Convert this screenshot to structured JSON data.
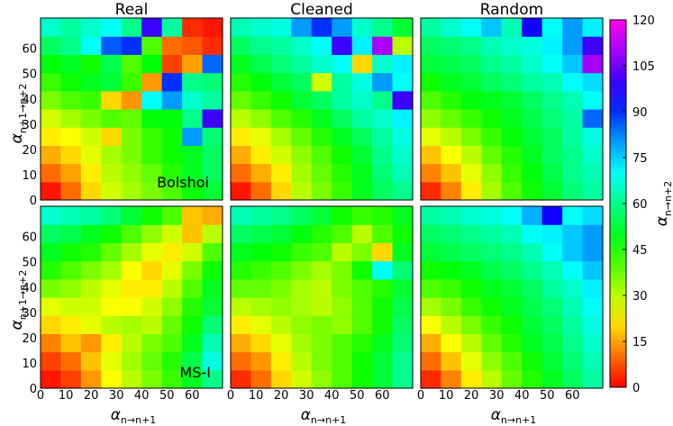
{
  "chart_data": {
    "type": "heatmap",
    "column_titles": [
      "Real",
      "Cleaned",
      "Random"
    ],
    "row_annotations": [
      "Bolshoi",
      "MS-I"
    ],
    "xlabel": {
      "main": "α",
      "sub": "n→n+1"
    },
    "ylabel": {
      "main": "α",
      "sub": "n+1→n+2"
    },
    "colorbar_label": {
      "main": "α",
      "sub": "n→n+2"
    },
    "xticks": [
      "0",
      "10",
      "20",
      "30",
      "40",
      "50",
      "60"
    ],
    "yticks": [
      "0",
      "10",
      "20",
      "30",
      "40",
      "50",
      "60"
    ],
    "colorbar_ticks": [
      "0",
      "15",
      "30",
      "45",
      "60",
      "75",
      "90",
      "105",
      "120"
    ],
    "x_range": [
      0,
      72
    ],
    "y_range": [
      0,
      72
    ],
    "value_range": [
      0,
      120
    ],
    "colormap": "gist_rainbow_r",
    "bin_size": 8,
    "panels": [
      {
        "name": "bolshoi-real",
        "grid": [
          [
            2,
            10,
            20,
            28,
            32,
            36,
            40,
            46,
            52
          ],
          [
            10,
            15,
            22,
            30,
            34,
            38,
            44,
            50,
            56
          ],
          [
            16,
            20,
            26,
            32,
            36,
            42,
            46,
            50,
            56
          ],
          [
            22,
            24,
            28,
            20,
            36,
            42,
            46,
            80,
            58
          ],
          [
            28,
            32,
            36,
            40,
            38,
            48,
            48,
            60,
            100
          ],
          [
            36,
            40,
            42,
            20,
            14,
            70,
            80,
            66,
            62
          ],
          [
            42,
            46,
            50,
            52,
            42,
            14,
            90,
            60,
            58
          ],
          [
            48,
            50,
            46,
            54,
            40,
            48,
            6,
            15,
            85
          ],
          [
            56,
            60,
            70,
            86,
            90,
            40,
            10,
            8,
            4
          ],
          [
            66,
            62,
            66,
            70,
            60,
            100,
            62,
            4,
            2
          ]
        ]
      },
      {
        "name": "bolshoi-cleaned",
        "grid": [
          [
            2,
            10,
            20,
            30,
            36,
            42,
            50,
            56,
            60
          ],
          [
            10,
            16,
            22,
            32,
            38,
            44,
            50,
            58,
            64
          ],
          [
            16,
            22,
            28,
            34,
            40,
            46,
            52,
            60,
            66
          ],
          [
            22,
            26,
            32,
            38,
            44,
            50,
            56,
            62,
            68
          ],
          [
            30,
            34,
            40,
            44,
            50,
            56,
            62,
            66,
            72
          ],
          [
            38,
            42,
            46,
            52,
            56,
            62,
            66,
            60,
            100
          ],
          [
            44,
            48,
            52,
            56,
            28,
            62,
            68,
            80,
            70
          ],
          [
            50,
            54,
            58,
            62,
            66,
            70,
            20,
            66,
            72
          ],
          [
            56,
            60,
            62,
            66,
            70,
            100,
            72,
            110,
            30
          ],
          [
            64,
            66,
            68,
            80,
            90,
            80,
            66,
            60,
            52
          ]
        ]
      },
      {
        "name": "bolshoi-random",
        "grid": [
          [
            4,
            12,
            22,
            32,
            40,
            46,
            52,
            58,
            62
          ],
          [
            12,
            18,
            26,
            34,
            42,
            48,
            54,
            60,
            64
          ],
          [
            18,
            24,
            30,
            38,
            44,
            50,
            56,
            60,
            66
          ],
          [
            26,
            30,
            36,
            42,
            48,
            52,
            56,
            62,
            68
          ],
          [
            34,
            38,
            42,
            46,
            50,
            54,
            58,
            62,
            85
          ],
          [
            40,
            44,
            48,
            50,
            52,
            56,
            60,
            64,
            70
          ],
          [
            46,
            50,
            52,
            56,
            58,
            62,
            64,
            70,
            74
          ],
          [
            52,
            54,
            56,
            60,
            62,
            66,
            70,
            76,
            110
          ],
          [
            56,
            58,
            60,
            64,
            66,
            68,
            72,
            80,
            100
          ],
          [
            62,
            66,
            70,
            76,
            64,
            96,
            70,
            80,
            72
          ]
        ]
      },
      {
        "name": "mst-real",
        "grid": [
          [
            2,
            6,
            14,
            24,
            30,
            36,
            42,
            50,
            60
          ],
          [
            6,
            10,
            18,
            26,
            32,
            38,
            44,
            54,
            68
          ],
          [
            12,
            18,
            14,
            22,
            30,
            36,
            40,
            50,
            64
          ],
          [
            20,
            22,
            26,
            30,
            32,
            30,
            38,
            46,
            58
          ],
          [
            26,
            28,
            28,
            24,
            24,
            28,
            34,
            44,
            52
          ],
          [
            36,
            34,
            30,
            26,
            22,
            22,
            30,
            40,
            50
          ],
          [
            44,
            40,
            36,
            32,
            24,
            20,
            26,
            36,
            46
          ],
          [
            50,
            46,
            44,
            38,
            32,
            26,
            22,
            28,
            40
          ],
          [
            56,
            54,
            50,
            46,
            40,
            34,
            28,
            18,
            30
          ],
          [
            66,
            64,
            62,
            58,
            52,
            46,
            40,
            18,
            16
          ]
        ]
      },
      {
        "name": "mst-cleaned",
        "grid": [
          [
            4,
            10,
            20,
            28,
            34,
            40,
            46,
            52,
            60
          ],
          [
            10,
            14,
            22,
            30,
            36,
            40,
            46,
            52,
            60
          ],
          [
            16,
            20,
            26,
            32,
            36,
            40,
            44,
            50,
            58
          ],
          [
            22,
            26,
            30,
            34,
            36,
            34,
            40,
            46,
            56
          ],
          [
            30,
            32,
            34,
            32,
            30,
            34,
            40,
            46,
            54
          ],
          [
            38,
            38,
            36,
            32,
            30,
            36,
            40,
            44,
            52
          ],
          [
            44,
            42,
            40,
            36,
            32,
            36,
            46,
            70,
            58
          ],
          [
            50,
            48,
            46,
            42,
            40,
            30,
            36,
            20,
            50
          ],
          [
            56,
            54,
            52,
            48,
            44,
            40,
            30,
            40,
            46
          ],
          [
            64,
            62,
            60,
            56,
            52,
            46,
            42,
            44,
            50
          ]
        ]
      },
      {
        "name": "mst-random",
        "grid": [
          [
            4,
            12,
            22,
            30,
            38,
            44,
            50,
            56,
            62
          ],
          [
            10,
            18,
            26,
            34,
            40,
            46,
            52,
            58,
            64
          ],
          [
            16,
            24,
            30,
            38,
            44,
            50,
            54,
            60,
            66
          ],
          [
            24,
            30,
            36,
            42,
            46,
            52,
            56,
            62,
            68
          ],
          [
            32,
            36,
            42,
            46,
            50,
            54,
            58,
            64,
            70
          ],
          [
            40,
            42,
            46,
            50,
            52,
            56,
            62,
            66,
            72
          ],
          [
            46,
            48,
            50,
            54,
            56,
            60,
            64,
            70,
            76
          ],
          [
            52,
            54,
            56,
            58,
            60,
            64,
            70,
            76,
            80
          ],
          [
            56,
            58,
            60,
            62,
            64,
            70,
            72,
            76,
            80
          ],
          [
            62,
            64,
            66,
            68,
            70,
            78,
            96,
            70,
            74
          ]
        ]
      }
    ]
  }
}
